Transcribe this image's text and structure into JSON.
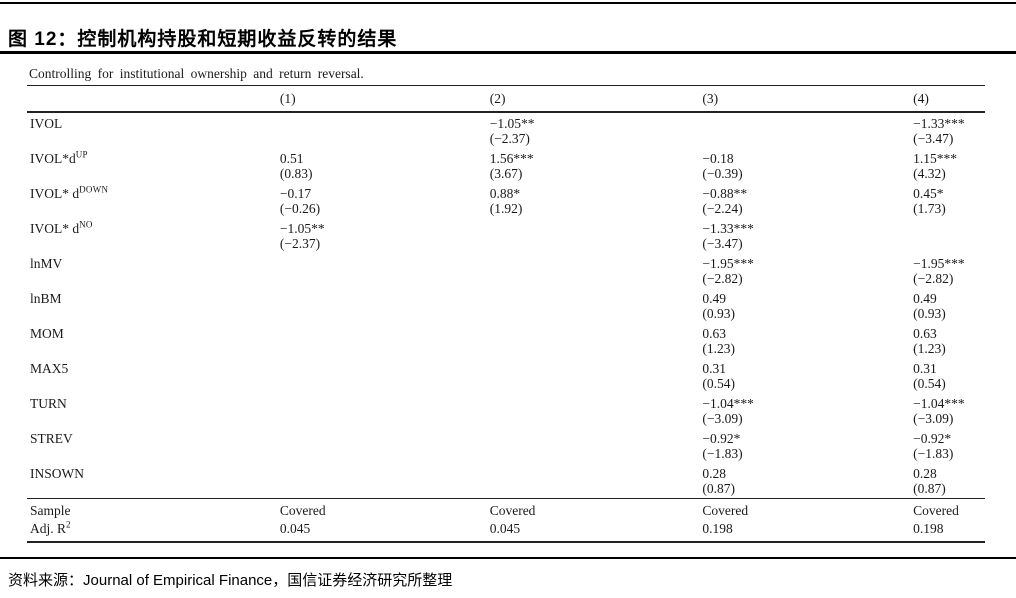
{
  "header": {
    "title": "图 12：控制机构持股和短期收益反转的结果"
  },
  "table": {
    "caption": "Controlling for institutional ownership and return reversal.",
    "col_headers": [
      "(1)",
      "(2)",
      "(3)",
      "(4)"
    ],
    "rows": [
      {
        "label_base": "IVOL",
        "label_sup": "",
        "coef": [
          "",
          "−1.05**",
          "",
          "−1.33***"
        ],
        "tstat": [
          "",
          "(−2.37)",
          "",
          "(−3.47)"
        ]
      },
      {
        "label_base": "IVOL*d",
        "label_sup": "UP",
        "coef": [
          "0.51",
          "1.56***",
          "−0.18",
          "1.15***"
        ],
        "tstat": [
          "(0.83)",
          "(3.67)",
          "(−0.39)",
          "(4.32)"
        ]
      },
      {
        "label_base": "IVOL* d",
        "label_sup": "DOWN",
        "coef": [
          "−0.17",
          "0.88*",
          "−0.88**",
          "0.45*"
        ],
        "tstat": [
          "(−0.26)",
          "(1.92)",
          "(−2.24)",
          "(1.73)"
        ]
      },
      {
        "label_base": "IVOL* d",
        "label_sup": "NO",
        "coef": [
          "−1.05**",
          "",
          "−1.33***",
          ""
        ],
        "tstat": [
          "(−2.37)",
          "",
          "(−3.47)",
          ""
        ]
      },
      {
        "label_base": "lnMV",
        "label_sup": "",
        "coef": [
          "",
          "",
          "−1.95***",
          "−1.95***"
        ],
        "tstat": [
          "",
          "",
          "(−2.82)",
          "(−2.82)"
        ]
      },
      {
        "label_base": "lnBM",
        "label_sup": "",
        "coef": [
          "",
          "",
          "0.49",
          "0.49"
        ],
        "tstat": [
          "",
          "",
          "(0.93)",
          "(0.93)"
        ]
      },
      {
        "label_base": "MOM",
        "label_sup": "",
        "coef": [
          "",
          "",
          "0.63",
          "0.63"
        ],
        "tstat": [
          "",
          "",
          "(1.23)",
          "(1.23)"
        ]
      },
      {
        "label_base": "MAX5",
        "label_sup": "",
        "coef": [
          "",
          "",
          "0.31",
          "0.31"
        ],
        "tstat": [
          "",
          "",
          "(0.54)",
          "(0.54)"
        ]
      },
      {
        "label_base": "TURN",
        "label_sup": "",
        "coef": [
          "",
          "",
          "−1.04***",
          "−1.04***"
        ],
        "tstat": [
          "",
          "",
          "(−3.09)",
          "(−3.09)"
        ]
      },
      {
        "label_base": "STREV",
        "label_sup": "",
        "coef": [
          "",
          "",
          "−0.92*",
          "−0.92*"
        ],
        "tstat": [
          "",
          "",
          "(−1.83)",
          "(−1.83)"
        ]
      },
      {
        "label_base": "INSOWN",
        "label_sup": "",
        "coef": [
          "",
          "",
          "0.28",
          "0.28"
        ],
        "tstat": [
          "",
          "",
          "(0.87)",
          "(0.87)"
        ]
      }
    ],
    "summary_rows": [
      {
        "label_base": "Sample",
        "label_sup": "",
        "values": [
          "Covered",
          "Covered",
          "Covered",
          "Covered"
        ]
      },
      {
        "label_base": "Adj. R",
        "label_sup": "2",
        "values": [
          "0.045",
          "0.045",
          "0.198",
          "0.198"
        ]
      }
    ]
  },
  "footer": {
    "source_label": "资料来源：",
    "source_text": "Journal of Empirical Finance，国信证券经济研究所整理"
  }
}
